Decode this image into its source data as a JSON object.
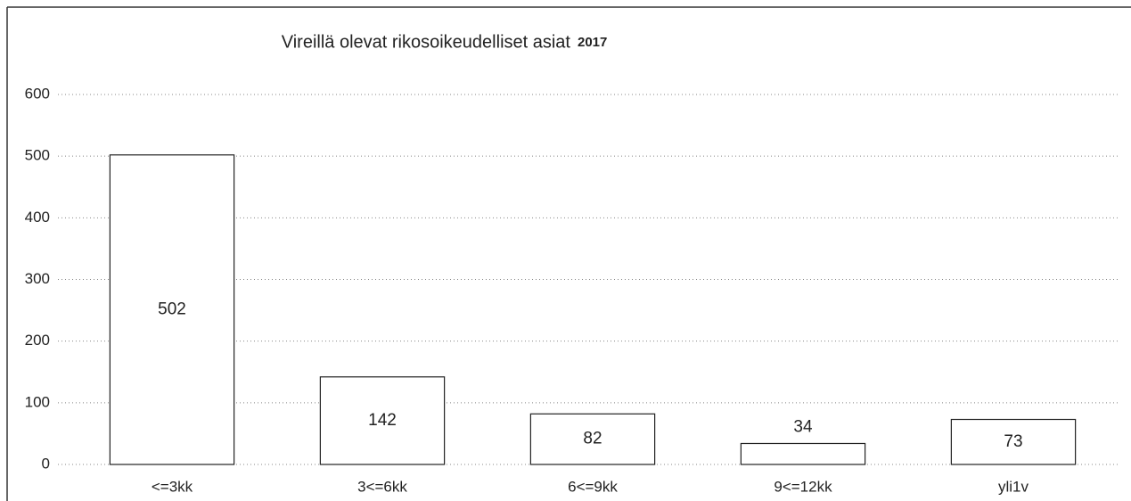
{
  "chart_data": {
    "type": "bar",
    "title": "Vireillä olevat rikosoikeudelliset asiat",
    "subtitle": "2017",
    "categories": [
      "<=3kk",
      "3<=6kk",
      "6<=9kk",
      "9<=12kk",
      "yli1v"
    ],
    "values": [
      502,
      142,
      82,
      34,
      73
    ],
    "color": "#ffffff",
    "ylim": [
      0,
      600
    ],
    "yticks": [
      0,
      100,
      200,
      300,
      400,
      500,
      600
    ],
    "grid": true
  }
}
